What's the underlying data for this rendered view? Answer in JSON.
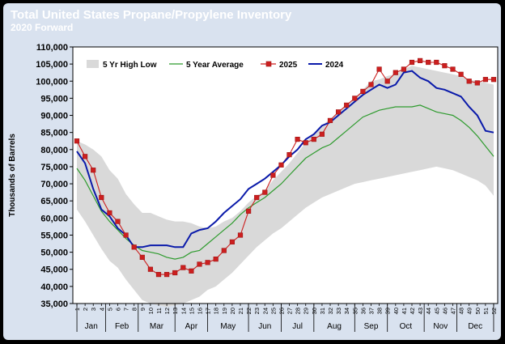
{
  "header": {
    "title": "Total United States Propane/Propylene Inventory",
    "subtitle": "2020 Forward"
  },
  "colors": {
    "background": "#D9E2EF",
    "title_text": "#FFFFFF",
    "band": "#D9D9D9",
    "avg_line": "#2E9B2E",
    "line_2025": "#CC1F1F",
    "marker_2025": "#A01616",
    "line_2024": "#0A1AAA"
  },
  "chart_data": {
    "type": "line",
    "title": "Total United States Propane/Propylene Inventory",
    "subtitle": "2020 Forward",
    "ylabel": "Thousands of Barrels",
    "xlabel": "",
    "ylim": [
      35000,
      110000
    ],
    "yticks": [
      35000,
      40000,
      45000,
      50000,
      55000,
      60000,
      65000,
      70000,
      75000,
      80000,
      85000,
      90000,
      95000,
      100000,
      105000,
      110000
    ],
    "ytick_labels": [
      "35,000",
      "40,000",
      "45,000",
      "50,000",
      "55,000",
      "60,000",
      "65,000",
      "70,000",
      "75,000",
      "80,000",
      "85,000",
      "90,000",
      "95,000",
      "100,000",
      "105,000",
      "110,000"
    ],
    "x": [
      "1",
      "2",
      "3",
      "4",
      "5",
      "6",
      "7",
      "8",
      "9",
      "10",
      "11",
      "12",
      "13",
      "14",
      "15",
      "16",
      "17",
      "18",
      "19",
      "20",
      "21",
      "22",
      "23",
      "24",
      "25",
      "26",
      "27",
      "28",
      "29",
      "30",
      "31",
      "32",
      "33",
      "34",
      "35",
      "36",
      "37",
      "38",
      "39",
      "40",
      "41",
      "42",
      "43",
      "44",
      "45",
      "46",
      "47",
      "48",
      "49",
      "50",
      "51",
      "52"
    ],
    "months": [
      {
        "label": "Jan",
        "start": 1,
        "end": 4.5
      },
      {
        "label": "Feb",
        "start": 4.5,
        "end": 8.5
      },
      {
        "label": "Mar",
        "start": 8.5,
        "end": 13
      },
      {
        "label": "Apr",
        "start": 13,
        "end": 17
      },
      {
        "label": "May",
        "start": 17,
        "end": 22
      },
      {
        "label": "Jun",
        "start": 22,
        "end": 26
      },
      {
        "label": "Jul",
        "start": 26,
        "end": 30
      },
      {
        "label": "Aug",
        "start": 30,
        "end": 35
      },
      {
        "label": "Sep",
        "start": 35,
        "end": 39
      },
      {
        "label": "Oct",
        "start": 39,
        "end": 43.5
      },
      {
        "label": "Nov",
        "start": 43.5,
        "end": 47.5
      },
      {
        "label": "Dec",
        "start": 47.5,
        "end": 52
      }
    ],
    "legend_position": "top",
    "grid": false,
    "band": {
      "name": "5 Yr High Low",
      "high": [
        82500,
        81500,
        80000,
        78000,
        74000,
        71500,
        67000,
        64000,
        61500,
        61500,
        60500,
        59500,
        59000,
        59000,
        58500,
        57500,
        57000,
        57500,
        59000,
        60000,
        62000,
        64500,
        66500,
        68000,
        71000,
        73500,
        76000,
        79000,
        82000,
        84500,
        87000,
        89000,
        91000,
        93000,
        95000,
        97500,
        100000,
        100500,
        101500,
        102000,
        103500,
        104500,
        104000,
        103500,
        103000,
        102500,
        102000,
        101500,
        100500,
        100000,
        99500,
        99000
      ],
      "low": [
        62500,
        59000,
        55000,
        51000,
        47500,
        45500,
        42000,
        39000,
        36000,
        35000,
        34500,
        34000,
        34500,
        35000,
        36000,
        37000,
        39000,
        40000,
        42000,
        44000,
        46500,
        49000,
        51500,
        53500,
        55500,
        57000,
        59000,
        61000,
        63000,
        64500,
        66000,
        67000,
        68000,
        69000,
        70000,
        70500,
        71000,
        71500,
        72000,
        72500,
        73000,
        73500,
        74000,
        74500,
        75000,
        74500,
        74000,
        73000,
        72000,
        71000,
        69500,
        66500
      ]
    },
    "series": [
      {
        "name": "5 Year Average",
        "values": [
          74500,
          71000,
          66500,
          62000,
          59000,
          56500,
          54000,
          52000,
          50500,
          50000,
          49500,
          48500,
          48000,
          48500,
          50000,
          50500,
          52500,
          54500,
          56500,
          58500,
          61000,
          63000,
          64500,
          66000,
          68000,
          70000,
          72500,
          75000,
          77500,
          79000,
          80500,
          81500,
          83500,
          85500,
          87500,
          89500,
          90500,
          91500,
          92000,
          92500,
          92500,
          92500,
          93000,
          92000,
          91000,
          90500,
          90000,
          88500,
          86500,
          84000,
          81000,
          78000
        ]
      },
      {
        "name": "2025",
        "values": [
          82500,
          78000,
          74000,
          66000,
          61500,
          59000,
          55000,
          51500,
          48500,
          45000,
          43500,
          43500,
          44000,
          45500,
          44500,
          46500,
          47000,
          48000,
          50500,
          53000,
          55000,
          62000,
          66000,
          67500,
          72500,
          75500,
          78500,
          83000,
          82000,
          83000,
          84500,
          88500,
          91000,
          93000,
          95000,
          97000,
          99000,
          103500,
          100000,
          102500,
          103500,
          105500,
          106000,
          105500,
          105500,
          104500,
          103500,
          102000,
          100000,
          99500,
          100500,
          100500
        ]
      },
      {
        "name": "2024",
        "values": [
          79500,
          76000,
          68500,
          62500,
          60500,
          57000,
          55000,
          51500,
          51500,
          52000,
          52000,
          52000,
          51500,
          51500,
          55500,
          56500,
          57000,
          59000,
          61500,
          63500,
          65500,
          68500,
          70000,
          71500,
          73500,
          75500,
          78000,
          80000,
          83000,
          84500,
          87000,
          88000,
          90000,
          92000,
          94000,
          96000,
          97500,
          99000,
          98000,
          99000,
          102500,
          103000,
          101000,
          100000,
          98000,
          97500,
          96500,
          95500,
          92500,
          90000,
          85500,
          85000
        ]
      }
    ]
  }
}
